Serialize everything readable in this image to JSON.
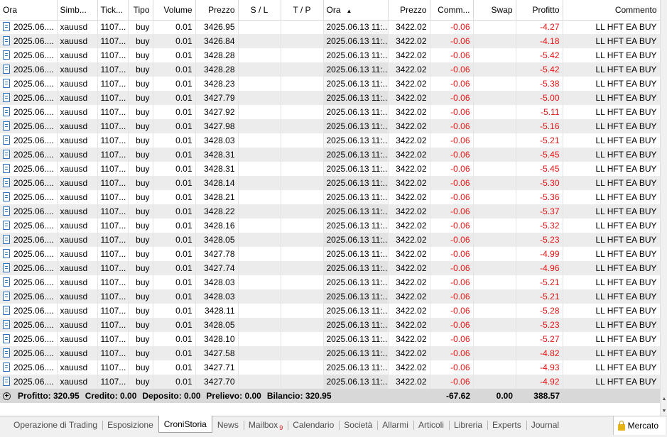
{
  "columns": [
    {
      "key": "time_open",
      "label": "Ora",
      "align": "left"
    },
    {
      "key": "symbol",
      "label": "Simb...",
      "align": "left"
    },
    {
      "key": "ticket",
      "label": "Tick...",
      "align": "left"
    },
    {
      "key": "type",
      "label": "Tipo",
      "align": "right"
    },
    {
      "key": "volume",
      "label": "Volume",
      "align": "right"
    },
    {
      "key": "price_open",
      "label": "Prezzo",
      "align": "right"
    },
    {
      "key": "sl",
      "label": "S / L",
      "align": "center"
    },
    {
      "key": "tp",
      "label": "T / P",
      "align": "center"
    },
    {
      "key": "time_close",
      "label": "Ora",
      "align": "left"
    },
    {
      "key": "price_close",
      "label": "Prezzo",
      "align": "right"
    },
    {
      "key": "commission",
      "label": "Comm...",
      "align": "right"
    },
    {
      "key": "swap",
      "label": "Swap",
      "align": "right"
    },
    {
      "key": "profit",
      "label": "Profitto",
      "align": "right"
    },
    {
      "key": "comment",
      "label": "Commento",
      "align": "right"
    }
  ],
  "sorted_column": "time_close",
  "sort_arrow": "▲",
  "row_defaults": {
    "time_open": "2025.06....",
    "symbol": "xauusd",
    "ticket": "1107...",
    "type": "buy",
    "volume": "0.01",
    "sl": "",
    "tp": "",
    "time_close": "2025.06.13 11:...",
    "price_close": "3422.02",
    "commission": "-0.06",
    "swap": "",
    "comment": "LL HFT EA BUY"
  },
  "rows": [
    {
      "price_open": "3426.95",
      "profit": "-4.27"
    },
    {
      "price_open": "3426.84",
      "profit": "-4.18"
    },
    {
      "price_open": "3428.28",
      "profit": "-5.42"
    },
    {
      "price_open": "3428.28",
      "profit": "-5.42"
    },
    {
      "price_open": "3428.23",
      "profit": "-5.38"
    },
    {
      "price_open": "3427.79",
      "profit": "-5.00"
    },
    {
      "price_open": "3427.92",
      "profit": "-5.11"
    },
    {
      "price_open": "3427.98",
      "profit": "-5.16"
    },
    {
      "price_open": "3428.03",
      "profit": "-5.21"
    },
    {
      "price_open": "3428.31",
      "profit": "-5.45"
    },
    {
      "price_open": "3428.31",
      "profit": "-5.45"
    },
    {
      "price_open": "3428.14",
      "profit": "-5.30"
    },
    {
      "price_open": "3428.21",
      "profit": "-5.36"
    },
    {
      "price_open": "3428.22",
      "profit": "-5.37"
    },
    {
      "price_open": "3428.16",
      "profit": "-5.32"
    },
    {
      "price_open": "3428.05",
      "profit": "-5.23"
    },
    {
      "price_open": "3427.78",
      "profit": "-4.99"
    },
    {
      "price_open": "3427.74",
      "profit": "-4.96"
    },
    {
      "price_open": "3428.03",
      "profit": "-5.21"
    },
    {
      "price_open": "3428.03",
      "profit": "-5.21"
    },
    {
      "price_open": "3428.11",
      "profit": "-5.28"
    },
    {
      "price_open": "3428.05",
      "profit": "-5.23"
    },
    {
      "price_open": "3428.10",
      "profit": "-5.27"
    },
    {
      "price_open": "3427.58",
      "profit": "-4.82"
    },
    {
      "price_open": "3427.71",
      "profit": "-4.93"
    },
    {
      "price_open": "3427.70",
      "profit": "-4.92"
    }
  ],
  "summary": {
    "profit_label": "Profitto:",
    "profit_value": "320.95",
    "credit_label": "Credito:",
    "credit_value": "0.00",
    "deposit_label": "Deposito:",
    "deposit_value": "0.00",
    "withdrawal_label": "Prelievo:",
    "withdrawal_value": "0.00",
    "balance_label": "Bilancio:",
    "balance_value": "320.95",
    "commission_total": "-67.62",
    "swap_total": "0.00",
    "profit_total": "388.57"
  },
  "tabs": [
    {
      "label": "Operazione di Trading",
      "active": false
    },
    {
      "label": "Esposizione",
      "active": false
    },
    {
      "label": "CroniStoria",
      "active": true
    },
    {
      "label": "News",
      "active": false
    },
    {
      "label": "Mailbox",
      "active": false,
      "badge": "9"
    },
    {
      "label": "Calendario",
      "active": false
    },
    {
      "label": "Società",
      "active": false
    },
    {
      "label": "Allarmi",
      "active": false
    },
    {
      "label": "Articoli",
      "active": false
    },
    {
      "label": "Libreria",
      "active": false
    },
    {
      "label": "Experts",
      "active": false
    },
    {
      "label": "Journal",
      "active": false
    }
  ],
  "market_button": {
    "label": "Mercato",
    "icon": "lock-icon"
  },
  "colors": {
    "negative": "#e81212",
    "row_alt": "#ececec",
    "summary_bg": "#d8d8d8",
    "tab_bar": "#f0f0f0"
  }
}
